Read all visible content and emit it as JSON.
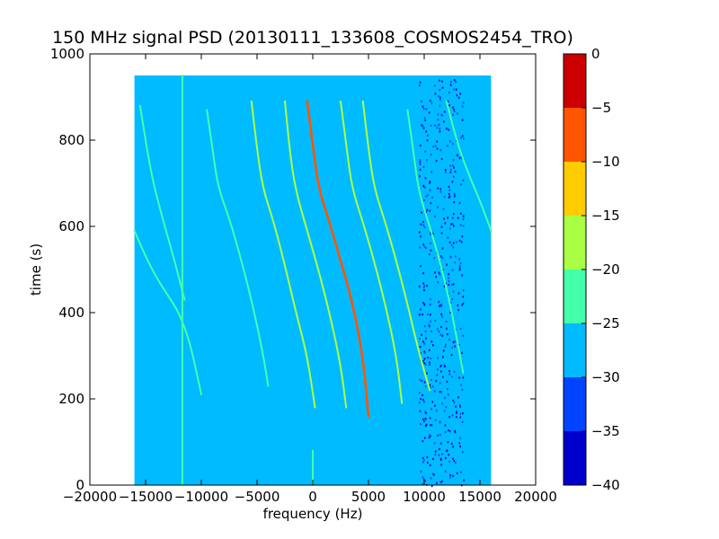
{
  "chart_data": {
    "type": "heatmap",
    "title": "150 MHz signal PSD (20130111_133608_COSMOS2454_TRO)",
    "xlabel": "frequency (Hz)",
    "ylabel": "time (s)",
    "xlim": [
      -20000,
      20000
    ],
    "ylim": [
      0,
      1000
    ],
    "xticks": [
      -20000,
      -15000,
      -10000,
      -5000,
      0,
      5000,
      10000,
      15000,
      20000
    ],
    "yticks": [
      0,
      200,
      400,
      600,
      800,
      1000
    ],
    "grid": false,
    "data_extent": {
      "x": [
        -16000,
        16000
      ],
      "y": [
        0,
        950
      ]
    },
    "background_level": -28,
    "colorbar": {
      "range": [
        -40,
        0
      ],
      "ticks": [
        0,
        -5,
        -10,
        -15,
        -20,
        -25,
        -30,
        -35,
        -40
      ],
      "bands": [
        {
          "from": -40,
          "to": -35,
          "color": "#0000cc"
        },
        {
          "from": -35,
          "to": -30,
          "color": "#0044ff"
        },
        {
          "from": -30,
          "to": -25,
          "color": "#00bbff"
        },
        {
          "from": -25,
          "to": -20,
          "color": "#44ffaa"
        },
        {
          "from": -20,
          "to": -15,
          "color": "#aaff44"
        },
        {
          "from": -15,
          "to": -10,
          "color": "#ffcc00"
        },
        {
          "from": -10,
          "to": -5,
          "color": "#ff5500"
        },
        {
          "from": -5,
          "to": 0,
          "color": "#cc0000"
        }
      ]
    },
    "traces": [
      {
        "points": [
          [
            -16000,
            590
          ],
          [
            -15000,
            530
          ],
          [
            -14000,
            480
          ],
          [
            -13000,
            440
          ],
          [
            -12000,
            400
          ],
          [
            -11000,
            330
          ],
          [
            -10000,
            210
          ]
        ],
        "level": -21
      },
      {
        "points": [
          [
            -15500,
            880
          ],
          [
            -14500,
            720
          ],
          [
            -13500,
            620
          ],
          [
            -12500,
            530
          ],
          [
            -11500,
            430
          ]
        ],
        "level": -22
      },
      {
        "points": [
          [
            -9500,
            870
          ],
          [
            -9000,
            780
          ],
          [
            -8500,
            690
          ],
          [
            -7500,
            620
          ],
          [
            -6500,
            530
          ],
          [
            -5500,
            430
          ],
          [
            -4500,
            310
          ],
          [
            -4000,
            230
          ]
        ],
        "level": -23
      },
      {
        "points": [
          [
            -5500,
            890
          ],
          [
            -5000,
            780
          ],
          [
            -4500,
            690
          ],
          [
            -3500,
            610
          ],
          [
            -2500,
            510
          ],
          [
            -1500,
            400
          ],
          [
            -500,
            300
          ],
          [
            200,
            180
          ]
        ],
        "level": -18
      },
      {
        "points": [
          [
            -2500,
            890
          ],
          [
            -2000,
            760
          ],
          [
            -1500,
            680
          ],
          [
            -500,
            590
          ],
          [
            500,
            500
          ],
          [
            1500,
            400
          ],
          [
            2500,
            280
          ],
          [
            3000,
            180
          ]
        ],
        "level": -18
      },
      {
        "points": [
          [
            -500,
            890
          ],
          [
            0,
            790
          ],
          [
            500,
            690
          ],
          [
            1500,
            610
          ],
          [
            2500,
            520
          ],
          [
            3500,
            430
          ],
          [
            4500,
            300
          ],
          [
            5000,
            160
          ]
        ],
        "level": -6
      },
      {
        "points": [
          [
            2500,
            890
          ],
          [
            3000,
            790
          ],
          [
            3500,
            690
          ],
          [
            4500,
            610
          ],
          [
            5500,
            520
          ],
          [
            6500,
            420
          ],
          [
            7500,
            300
          ],
          [
            8000,
            190
          ]
        ],
        "level": -18
      },
      {
        "points": [
          [
            4500,
            890
          ],
          [
            5000,
            780
          ],
          [
            5500,
            690
          ],
          [
            6500,
            610
          ],
          [
            7500,
            520
          ],
          [
            8500,
            420
          ],
          [
            9500,
            310
          ],
          [
            10500,
            220
          ]
        ],
        "level": -18
      },
      {
        "points": [
          [
            8500,
            870
          ],
          [
            9000,
            780
          ],
          [
            9500,
            680
          ],
          [
            10500,
            600
          ],
          [
            11500,
            510
          ],
          [
            12500,
            400
          ],
          [
            13500,
            260
          ]
        ],
        "level": -22
      },
      {
        "points": [
          [
            12000,
            890
          ],
          [
            13000,
            790
          ],
          [
            14000,
            720
          ],
          [
            15000,
            660
          ],
          [
            16000,
            590
          ]
        ],
        "level": -22
      },
      {
        "points": [
          [
            -11700,
            950
          ],
          [
            -11700,
            0
          ]
        ],
        "level": -22
      },
      {
        "points": [
          [
            0,
            80
          ],
          [
            0,
            0
          ]
        ],
        "level": -20
      }
    ],
    "noisy_band": {
      "x": [
        9500,
        13500
      ],
      "level_range": [
        -40,
        -30
      ]
    }
  }
}
